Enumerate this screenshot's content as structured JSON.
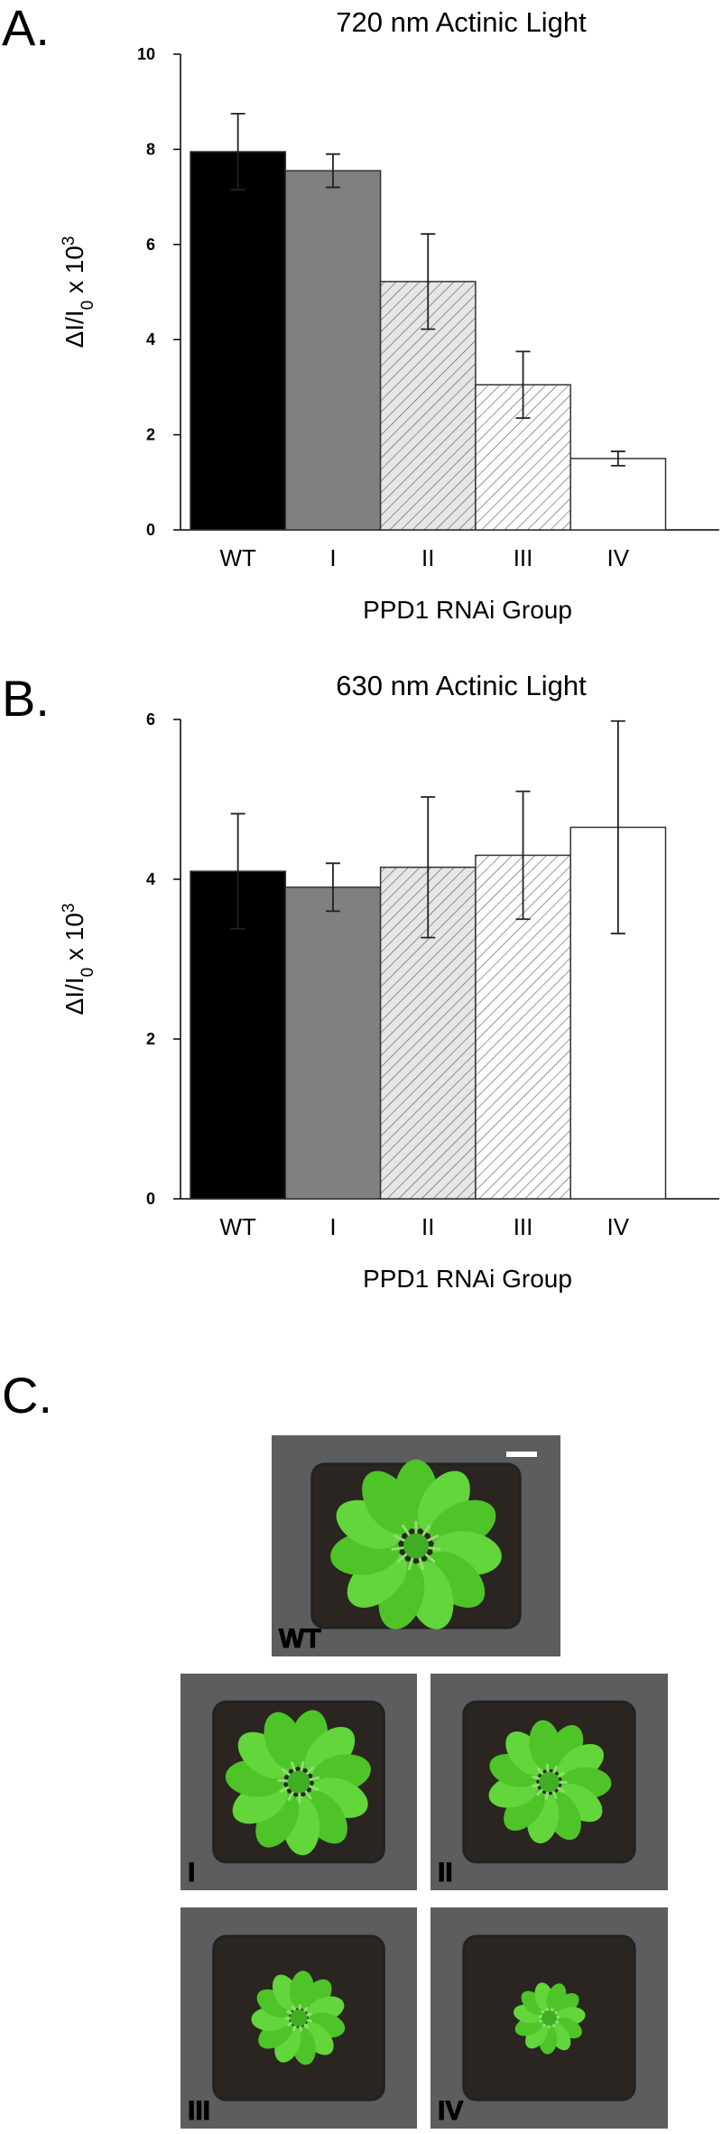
{
  "chart_data": [
    {
      "type": "bar",
      "panel": "A.",
      "title": "720 nm Actinic Light",
      "ylabel_parts": [
        "ΔI/I",
        "0",
        " x 10",
        "3"
      ],
      "xlabel": "PPD1 RNAi Group",
      "categories": [
        "WT",
        "I",
        "II",
        "III",
        "IV"
      ],
      "values": [
        7.95,
        7.55,
        5.22,
        3.05,
        1.5
      ],
      "errors": [
        0.8,
        0.35,
        1.0,
        0.7,
        0.15
      ],
      "colors": [
        "#000000",
        "#808080",
        "#e6e6e6",
        "#ffffff",
        "#ffffff"
      ],
      "hatch": [
        false,
        false,
        true,
        true,
        false
      ],
      "ylim": [
        0,
        10
      ],
      "yticks": [
        0,
        2,
        4,
        6,
        8,
        10
      ]
    },
    {
      "type": "bar",
      "panel": "B.",
      "title": "630 nm Actinic Light",
      "ylabel_parts": [
        "ΔI/I",
        "0",
        " x 10",
        "3"
      ],
      "xlabel": "PPD1 RNAi Group",
      "categories": [
        "WT",
        "I",
        "II",
        "III",
        "IV"
      ],
      "values": [
        4.1,
        3.9,
        4.15,
        4.3,
        4.65
      ],
      "errors": [
        0.72,
        0.3,
        0.88,
        0.8,
        1.33
      ],
      "colors": [
        "#000000",
        "#808080",
        "#e6e6e6",
        "#ffffff",
        "#ffffff"
      ],
      "hatch": [
        false,
        false,
        true,
        true,
        false
      ],
      "ylim": [
        0,
        6
      ],
      "yticks": [
        0,
        2,
        4,
        6
      ]
    }
  ],
  "photos": {
    "panel": "C.",
    "labels": [
      "WT",
      "I",
      "II",
      "III",
      "IV"
    ]
  }
}
